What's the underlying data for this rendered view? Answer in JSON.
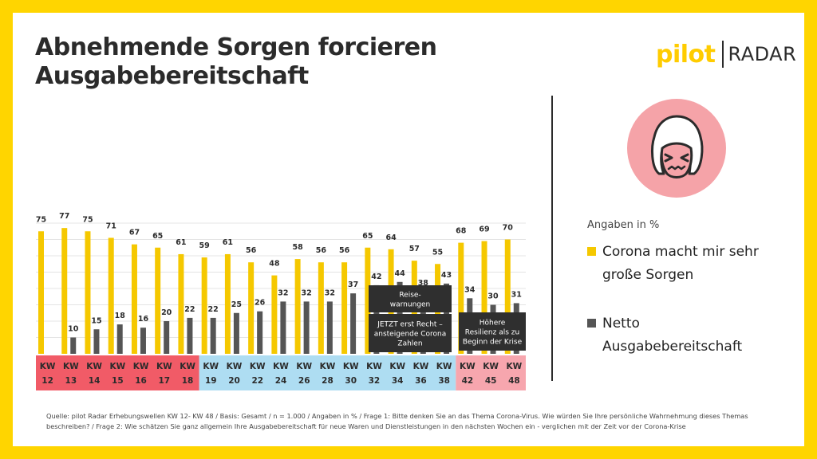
{
  "title_lines": [
    "Abnehmende Sorgen forcieren",
    "Ausgabebereitschaft"
  ],
  "logo": {
    "pilot": "pilot",
    "radar": "RADAR"
  },
  "colors": {
    "series_sorgen": "#F5C800",
    "series_ausgabe": "#555555",
    "band_red": "#F15B67",
    "band_blue": "#AEDDF2",
    "band_pink": "#F7A6AE",
    "annotation_bg": "#2f2f2f",
    "face_bg": "#F5A3A8"
  },
  "chart_data": {
    "type": "bar",
    "categories": [
      "KW 12",
      "KW 13",
      "KW 14",
      "KW 15",
      "KW 16",
      "KW 17",
      "KW 18",
      "KW 19",
      "KW 20",
      "KW 22",
      "KW 24",
      "KW 26",
      "KW 28",
      "KW 30",
      "KW 32",
      "KW 34",
      "KW 36",
      "KW 38",
      "KW 42",
      "KW 45",
      "KW 48"
    ],
    "category_parts": [
      [
        "KW",
        "12"
      ],
      [
        "KW",
        "13"
      ],
      [
        "KW",
        "14"
      ],
      [
        "KW",
        "15"
      ],
      [
        "KW",
        "16"
      ],
      [
        "KW",
        "17"
      ],
      [
        "KW",
        "18"
      ],
      [
        "KW",
        "19"
      ],
      [
        "KW",
        "20"
      ],
      [
        "KW",
        "22"
      ],
      [
        "KW",
        "24"
      ],
      [
        "KW",
        "26"
      ],
      [
        "KW",
        "28"
      ],
      [
        "KW",
        "30"
      ],
      [
        "KW",
        "32"
      ],
      [
        "KW",
        "34"
      ],
      [
        "KW",
        "36"
      ],
      [
        "KW",
        "38"
      ],
      [
        "KW",
        "42"
      ],
      [
        "KW",
        "45"
      ],
      [
        "KW",
        "48"
      ]
    ],
    "category_bands": [
      "red",
      "red",
      "red",
      "red",
      "red",
      "red",
      "red",
      "blue",
      "blue",
      "blue",
      "blue",
      "blue",
      "blue",
      "blue",
      "blue",
      "blue",
      "blue",
      "blue",
      "pink",
      "pink",
      "pink"
    ],
    "series": [
      {
        "name": "Corona macht mir sehr große Sorgen",
        "values": [
          75,
          77,
          75,
          71,
          67,
          65,
          61,
          59,
          61,
          56,
          48,
          58,
          56,
          56,
          65,
          64,
          57,
          55,
          68,
          69,
          70
        ]
      },
      {
        "name": "Netto Ausgabebereitschaft",
        "values": [
          null,
          10,
          15,
          18,
          16,
          20,
          22,
          22,
          25,
          26,
          32,
          32,
          32,
          37,
          42,
          44,
          38,
          43,
          34,
          30,
          31
        ]
      }
    ],
    "ylim": [
      0,
      80
    ],
    "grid": true,
    "legend_position": "right",
    "annotations": [
      {
        "lines": [
          "Reise-",
          "warnungen"
        ]
      },
      {
        "lines": [
          "JETZT erst Recht –",
          "ansteigende Corona",
          "Zahlen"
        ]
      },
      {
        "lines": [
          "Höhere",
          "Resilienz als zu",
          "Beginn der Krise"
        ]
      }
    ]
  },
  "legend": {
    "note": "Angaben in %",
    "items": [
      {
        "label": "Corona macht mir sehr große Sorgen",
        "color": "#F5C800"
      },
      {
        "label": "Netto Ausgabebereitschaft",
        "color": "#555555"
      }
    ]
  },
  "footnote": "Quelle: pilot Radar Erhebungswellen KW 12- KW 48 / Basis: Gesamt / n = 1.000 / Angaben in % / Frage 1: Bitte denken Sie an das Thema Corona-Virus. Wie würden Sie Ihre persönliche Wahrnehmung dieses Themas beschreiben? / Frage 2: Wie schätzen Sie ganz allgemein Ihre Ausgabebereitschaft für neue Waren und Dienstleistungen in den nächsten Wochen ein - verglichen mit der Zeit vor der Corona-Krise"
}
